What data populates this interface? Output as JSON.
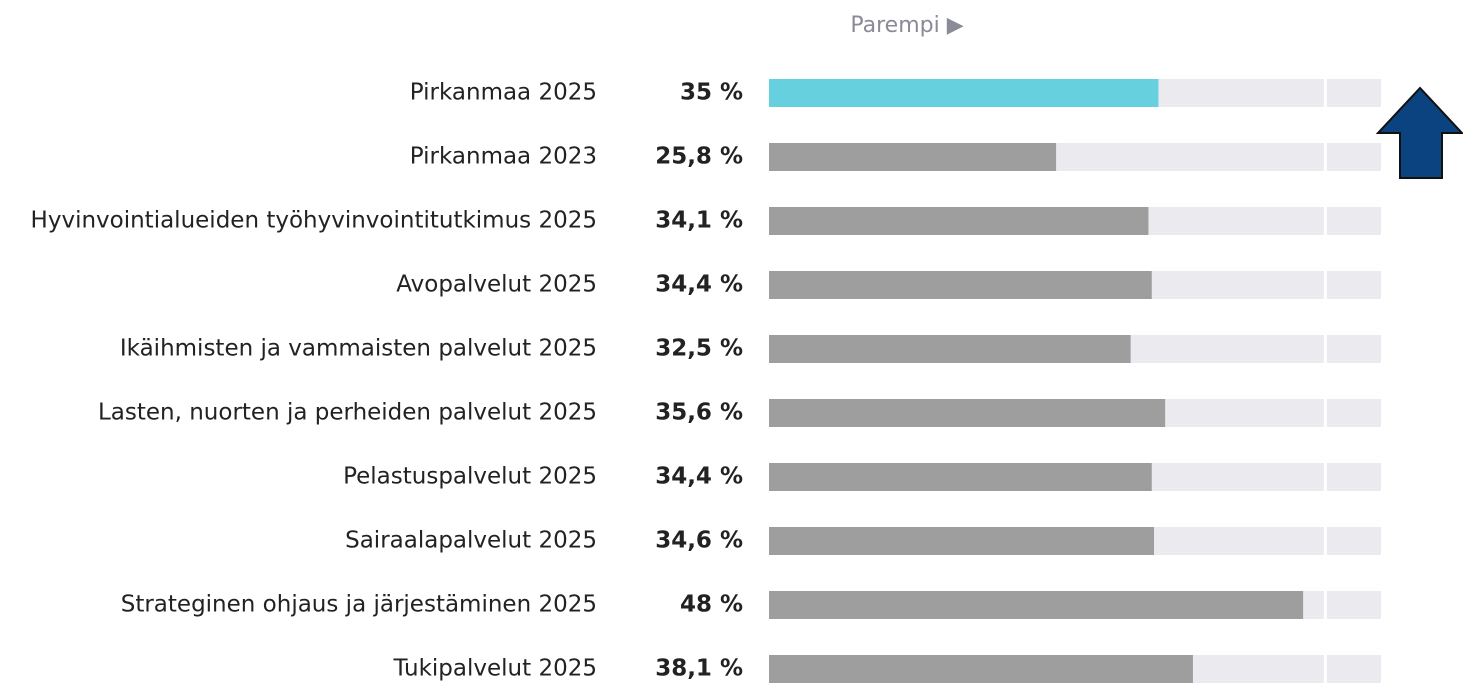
{
  "chart_data": {
    "type": "bar",
    "orientation": "horizontal",
    "annotation": "Parempi ▶",
    "categories": [
      "Pirkanmaa 2025",
      "Pirkanmaa 2023",
      "Hyvinvointialueiden työhyvinvointitutkimus 2025",
      "Avopalvelut 2025",
      "Ikäihmisten ja vammaisten palvelut 2025",
      "Lasten, nuorten ja perheiden palvelut 2025",
      "Pelastuspalvelut 2025",
      "Sairaalapalvelut 2025",
      "Strateginen ohjaus ja järjestäminen 2025",
      "Tukipalvelut 2025"
    ],
    "values": [
      35,
      25.8,
      34.1,
      34.4,
      32.5,
      35.6,
      34.4,
      34.6,
      48,
      38.1
    ],
    "value_labels": [
      "35 %",
      "25,8 %",
      "34,1 %",
      "34,4 %",
      "32,5 %",
      "35,6 %",
      "34,4 %",
      "34,6 %",
      "48 %",
      "38,1 %"
    ],
    "colors": [
      "#66d0df",
      "#9e9e9e",
      "#9e9e9e",
      "#9e9e9e",
      "#9e9e9e",
      "#9e9e9e",
      "#9e9e9e",
      "#9e9e9e",
      "#9e9e9e",
      "#9e9e9e"
    ],
    "track_color": "#ebebef",
    "xlim": [
      0,
      55
    ],
    "xticks": [
      50
    ],
    "grid": true
  }
}
